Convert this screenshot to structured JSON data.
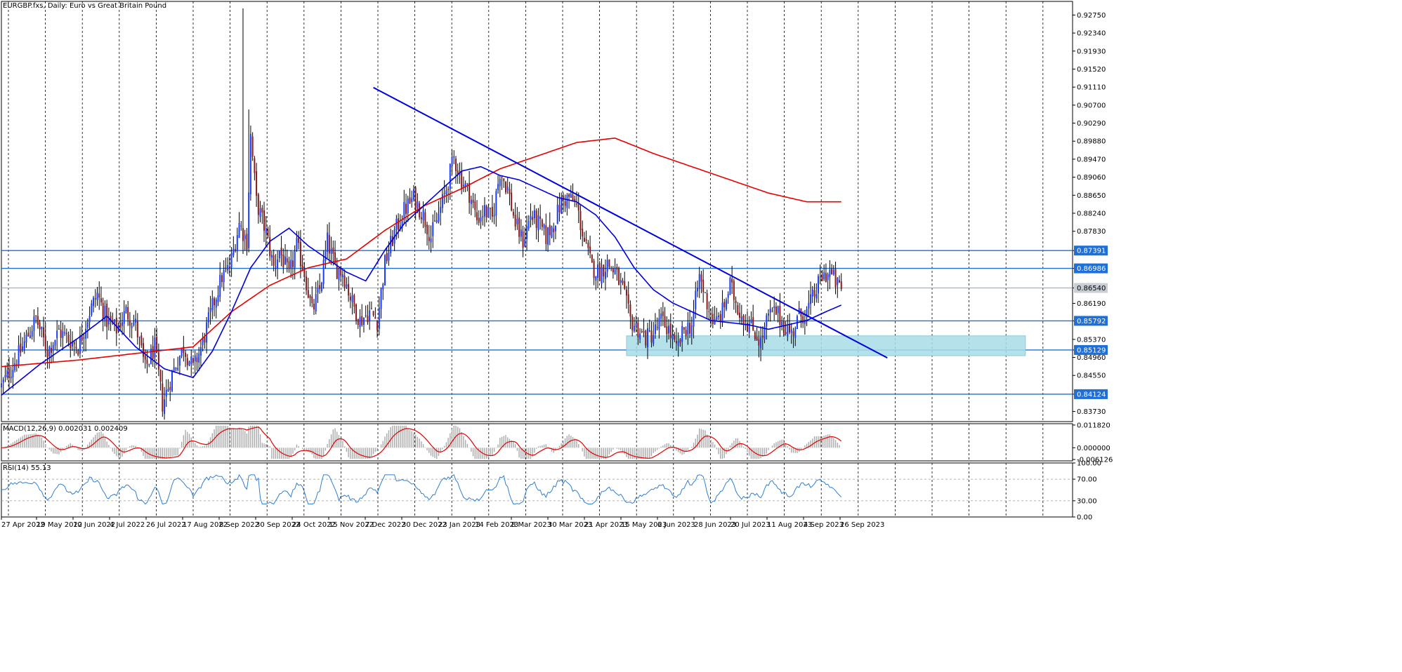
{
  "window": {
    "title": "EURGBP.fxs, Daily:  Euro vs Great Britain Pound"
  },
  "chart_data": [
    {
      "type": "candlestick",
      "title": "EURGBP.fxs, Daily:  Euro vs Great Britain Pound",
      "ylim": [
        0.835,
        0.9306
      ],
      "y_ticks": [
        0.9275,
        0.9234,
        0.9193,
        0.9152,
        0.9111,
        0.907,
        0.9029,
        0.8988,
        0.8947,
        0.8906,
        0.8865,
        0.8824,
        0.8783,
        0.87391,
        0.86986,
        0.8654,
        0.8619,
        0.85792,
        0.8537,
        0.85129,
        0.8496,
        0.8455,
        0.84124,
        0.8373
      ],
      "highlighted_levels": [
        {
          "value": 0.87391,
          "label": "0.87391"
        },
        {
          "value": 0.86986,
          "label": "0.86986"
        },
        {
          "value": 0.85792,
          "label": "0.85792"
        },
        {
          "value": 0.85129,
          "label": "0.85129"
        },
        {
          "value": 0.84124,
          "label": "0.84124"
        }
      ],
      "current_price": {
        "value": 0.8654,
        "label": "0.86540"
      },
      "x_ticks": [
        "27 Apr 2022",
        "19 May 2022",
        "10 Jun 2022",
        "4 Jul 2022",
        "26 Jul 2022",
        "17 Aug 2022",
        "8 Sep 2022",
        "30 Sep 2022",
        "24 Oct 2022",
        "15 Nov 2022",
        "7 Dec 2022",
        "30 Dec 2022",
        "23 Jan 2023",
        "14 Feb 2023",
        "8 Mar 2023",
        "30 Mar 2023",
        "21 Apr 2023",
        "15 May 2023",
        "6 Jun 2023",
        "28 Jun 2023",
        "20 Jul 2023",
        "11 Aug 2023",
        "4 Sep 2023",
        "26 Sep 2023"
      ],
      "close_path": [
        [
          0,
          0.843
        ],
        [
          10,
          0.851
        ],
        [
          18,
          0.8585
        ],
        [
          24,
          0.851
        ],
        [
          30,
          0.8555
        ],
        [
          40,
          0.852
        ],
        [
          46,
          0.86
        ],
        [
          50,
          0.864
        ],
        [
          55,
          0.858
        ],
        [
          60,
          0.856
        ],
        [
          65,
          0.86
        ],
        [
          70,
          0.857
        ],
        [
          75,
          0.847
        ],
        [
          80,
          0.852
        ],
        [
          84,
          0.839
        ],
        [
          90,
          0.847
        ],
        [
          95,
          0.852
        ],
        [
          100,
          0.847
        ],
        [
          105,
          0.853
        ],
        [
          110,
          0.861
        ],
        [
          115,
          0.868
        ],
        [
          119,
          0.87
        ],
        [
          124,
          0.88
        ],
        [
          128,
          0.876
        ],
        [
          130,
          0.9
        ],
        [
          133,
          0.885
        ],
        [
          138,
          0.878
        ],
        [
          142,
          0.87
        ],
        [
          145,
          0.874
        ],
        [
          150,
          0.868
        ],
        [
          154,
          0.875
        ],
        [
          158,
          0.869
        ],
        [
          162,
          0.86
        ],
        [
          166,
          0.865
        ],
        [
          170,
          0.876
        ],
        [
          174,
          0.87
        ],
        [
          178,
          0.869
        ],
        [
          183,
          0.862
        ],
        [
          187,
          0.858
        ],
        [
          192,
          0.86
        ],
        [
          196,
          0.858
        ],
        [
          200,
          0.871
        ],
        [
          205,
          0.878
        ],
        [
          210,
          0.883
        ],
        [
          215,
          0.886
        ],
        [
          220,
          0.882
        ],
        [
          224,
          0.877
        ],
        [
          228,
          0.882
        ],
        [
          232,
          0.888
        ],
        [
          236,
          0.895
        ],
        [
          240,
          0.89
        ],
        [
          244,
          0.887
        ],
        [
          248,
          0.881
        ],
        [
          252,
          0.883
        ],
        [
          256,
          0.881
        ],
        [
          260,
          0.892
        ],
        [
          264,
          0.888
        ],
        [
          268,
          0.88
        ],
        [
          272,
          0.876
        ],
        [
          276,
          0.882
        ],
        [
          280,
          0.88
        ],
        [
          284,
          0.877
        ],
        [
          288,
          0.88
        ],
        [
          292,
          0.885
        ],
        [
          296,
          0.886
        ],
        [
          300,
          0.884
        ],
        [
          304,
          0.876
        ],
        [
          308,
          0.87
        ],
        [
          312,
          0.869
        ],
        [
          316,
          0.871
        ],
        [
          320,
          0.869
        ],
        [
          324,
          0.865
        ],
        [
          328,
          0.858
        ],
        [
          332,
          0.856
        ],
        [
          336,
          0.854
        ],
        [
          340,
          0.855
        ],
        [
          344,
          0.858
        ],
        [
          348,
          0.856
        ],
        [
          352,
          0.851
        ],
        [
          356,
          0.856
        ],
        [
          360,
          0.857
        ],
        [
          364,
          0.868
        ],
        [
          368,
          0.862
        ],
        [
          372,
          0.857
        ],
        [
          376,
          0.86
        ],
        [
          380,
          0.866
        ],
        [
          384,
          0.861
        ],
        [
          388,
          0.858
        ],
        [
          392,
          0.856
        ],
        [
          396,
          0.853
        ],
        [
          400,
          0.859
        ],
        [
          404,
          0.86
        ],
        [
          408,
          0.857
        ],
        [
          412,
          0.855
        ],
        [
          416,
          0.859
        ],
        [
          420,
          0.86
        ],
        [
          424,
          0.864
        ],
        [
          428,
          0.868
        ],
        [
          432,
          0.869
        ],
        [
          436,
          0.866
        ],
        [
          438,
          0.8652
        ]
      ],
      "series": [
        {
          "name": "MA red",
          "color": "#e60000",
          "points": [
            [
              0,
              0.8475
            ],
            [
              40,
              0.849
            ],
            [
              80,
              0.851
            ],
            [
              100,
              0.852
            ],
            [
              120,
              0.86
            ],
            [
              140,
              0.866
            ],
            [
              160,
              0.87
            ],
            [
              180,
              0.872
            ],
            [
              200,
              0.8785
            ],
            [
              220,
              0.884
            ],
            [
              240,
              0.888
            ],
            [
              260,
              0.8925
            ],
            [
              280,
              0.8955
            ],
            [
              300,
              0.8985
            ],
            [
              320,
              0.8995
            ],
            [
              340,
              0.896
            ],
            [
              360,
              0.893
            ],
            [
              380,
              0.89
            ],
            [
              400,
              0.887
            ],
            [
              420,
              0.885
            ],
            [
              438,
              0.885
            ]
          ]
        },
        {
          "name": "MA blue",
          "color": "#0000e0",
          "points": [
            [
              0,
              0.841
            ],
            [
              20,
              0.848
            ],
            [
              40,
              0.854
            ],
            [
              55,
              0.859
            ],
            [
              70,
              0.852
            ],
            [
              85,
              0.847
            ],
            [
              100,
              0.845
            ],
            [
              110,
              0.851
            ],
            [
              120,
              0.86
            ],
            [
              130,
              0.87
            ],
            [
              140,
              0.876
            ],
            [
              150,
              0.879
            ],
            [
              160,
              0.875
            ],
            [
              170,
              0.872
            ],
            [
              180,
              0.869
            ],
            [
              190,
              0.867
            ],
            [
              200,
              0.874
            ],
            [
              210,
              0.88
            ],
            [
              220,
              0.884
            ],
            [
              230,
              0.888
            ],
            [
              240,
              0.892
            ],
            [
              250,
              0.893
            ],
            [
              260,
              0.891
            ],
            [
              270,
              0.89
            ],
            [
              280,
              0.888
            ],
            [
              290,
              0.886
            ],
            [
              300,
              0.885
            ],
            [
              310,
              0.882
            ],
            [
              320,
              0.877
            ],
            [
              330,
              0.87
            ],
            [
              340,
              0.865
            ],
            [
              350,
              0.862
            ],
            [
              360,
              0.86
            ],
            [
              370,
              0.858
            ],
            [
              380,
              0.8575
            ],
            [
              390,
              0.857
            ],
            [
              400,
              0.856
            ],
            [
              410,
              0.857
            ],
            [
              420,
              0.858
            ],
            [
              430,
              0.86
            ],
            [
              438,
              0.8615
            ]
          ]
        }
      ],
      "trendline": {
        "color": "#0000e0",
        "from": [
          194,
          0.911
        ],
        "to": [
          462,
          0.8495
        ]
      },
      "zone": {
        "color": "#a8dde6",
        "x_from": 326,
        "x_to": 534,
        "y_from": 0.85,
        "y_to": 0.8545
      }
    },
    {
      "type": "macd",
      "label": "MACD(12,26,9) 0.002031 0.002409",
      "y_ticks": [
        0.01182,
        0.0,
        -0.006126
      ],
      "ylim": [
        -0.00683,
        0.01252
      ]
    },
    {
      "type": "rsi",
      "label": "RSI(14) 55.13",
      "y_ticks": [
        100.0,
        70.0,
        30.0,
        0.0
      ],
      "ylim": [
        0,
        100
      ]
    }
  ]
}
